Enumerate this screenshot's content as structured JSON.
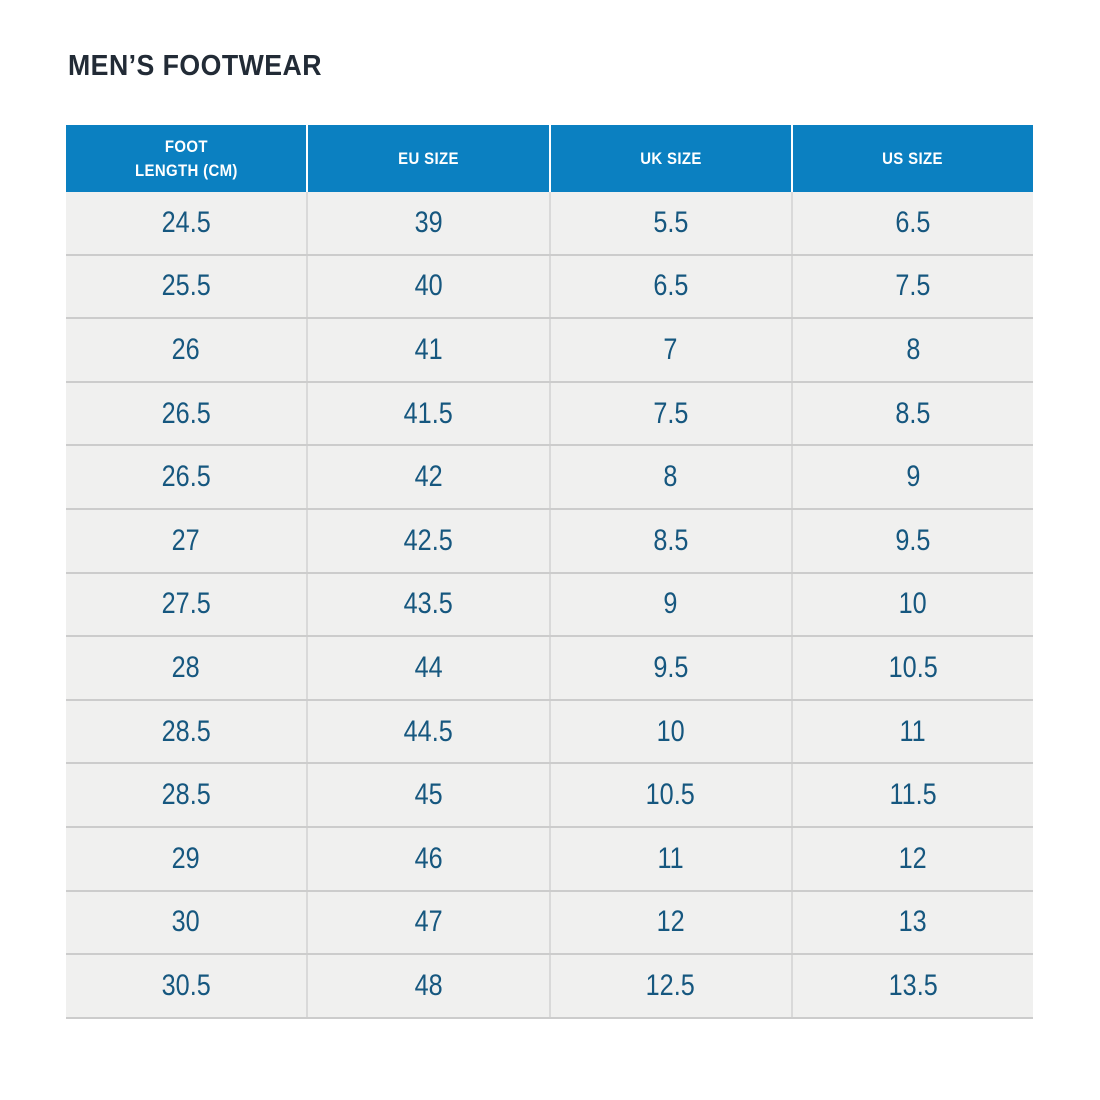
{
  "page": {
    "title": "MEN’S FOOTWEAR"
  },
  "colors": {
    "header_bg": "#0b80c1",
    "header_text": "#ffffff",
    "cell_bg": "#f0f0ef",
    "cell_text": "#16577f",
    "row_line": "#cccccc",
    "col_line": "#d9d9d9",
    "title": "#222b36",
    "page_bg": "#ffffff"
  },
  "table": {
    "columns": [
      "FOOT\nLENGTH (CM)",
      "EU SIZE",
      "UK SIZE",
      "US SIZE"
    ],
    "rows": [
      [
        "24.5",
        "39",
        "5.5",
        "6.5"
      ],
      [
        "25.5",
        "40",
        "6.5",
        "7.5"
      ],
      [
        "26",
        "41",
        "7",
        "8"
      ],
      [
        "26.5",
        "41.5",
        "7.5",
        "8.5"
      ],
      [
        "26.5",
        "42",
        "8",
        "9"
      ],
      [
        "27",
        "42.5",
        "8.5",
        "9.5"
      ],
      [
        "27.5",
        "43.5",
        "9",
        "10"
      ],
      [
        "28",
        "44",
        "9.5",
        "10.5"
      ],
      [
        "28.5",
        "44.5",
        "10",
        "11"
      ],
      [
        "28.5",
        "45",
        "10.5",
        "11.5"
      ],
      [
        "29",
        "46",
        "11",
        "12"
      ],
      [
        "30",
        "47",
        "12",
        "13"
      ],
      [
        "30.5",
        "48",
        "12.5",
        "13.5"
      ]
    ]
  },
  "chart_data": {
    "type": "table",
    "title": "MEN’S FOOTWEAR",
    "columns": [
      "FOOT LENGTH (CM)",
      "EU SIZE",
      "UK SIZE",
      "US SIZE"
    ],
    "rows": [
      [
        24.5,
        39,
        5.5,
        6.5
      ],
      [
        25.5,
        40,
        6.5,
        7.5
      ],
      [
        26,
        41,
        7,
        8
      ],
      [
        26.5,
        41.5,
        7.5,
        8.5
      ],
      [
        26.5,
        42,
        8,
        9
      ],
      [
        27,
        42.5,
        8.5,
        9.5
      ],
      [
        27.5,
        43.5,
        9,
        10
      ],
      [
        28,
        44,
        9.5,
        10.5
      ],
      [
        28.5,
        44.5,
        10,
        11
      ],
      [
        28.5,
        45,
        10.5,
        11.5
      ],
      [
        29,
        46,
        11,
        12
      ],
      [
        30,
        47,
        12,
        13
      ],
      [
        30.5,
        48,
        12.5,
        13.5
      ]
    ]
  }
}
